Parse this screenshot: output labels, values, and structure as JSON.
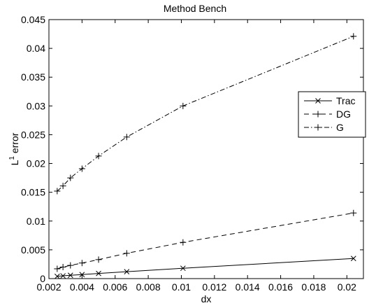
{
  "chart_data": {
    "type": "line",
    "title": "Method Bench",
    "xlabel": "dx",
    "ylabel_main": "L",
    "ylabel_sup": "1",
    "ylabel_rest": " error",
    "xlim": [
      0.002,
      0.021
    ],
    "ylim": [
      0,
      0.045
    ],
    "xticks": [
      0.002,
      0.004,
      0.006,
      0.008,
      0.01,
      0.012,
      0.014,
      0.016,
      0.018,
      0.02
    ],
    "xtick_labels": [
      "0.002",
      "0.004",
      "0.006",
      "0.008",
      "0.01",
      "0.012",
      "0.014",
      "0.016",
      "0.018",
      "0.02"
    ],
    "yticks": [
      0,
      0.005,
      0.01,
      0.015,
      0.02,
      0.025,
      0.03,
      0.035,
      0.04,
      0.045
    ],
    "ytick_labels": [
      "0",
      "0.005",
      "0.01",
      "0.015",
      "0.02",
      "0.025",
      "0.03",
      "0.035",
      "0.04",
      "0.045"
    ],
    "grid": false,
    "legend_position": "top-right",
    "x": [
      0.0025,
      0.00285,
      0.0033,
      0.004,
      0.005,
      0.0067,
      0.0101,
      0.0204
    ],
    "series": [
      {
        "name": "Trac",
        "line": "solid",
        "marker": "x",
        "values": [
          0.0004,
          0.00048,
          0.00058,
          0.0007,
          0.0009,
          0.0012,
          0.0018,
          0.0035
        ]
      },
      {
        "name": "DG",
        "line": "dashed",
        "marker": "+",
        "values": [
          0.0017,
          0.002,
          0.0023,
          0.0027,
          0.0033,
          0.0044,
          0.0063,
          0.0114
        ]
      },
      {
        "name": "G",
        "line": "dashdot",
        "marker": "+",
        "values": [
          0.0152,
          0.0161,
          0.0175,
          0.0191,
          0.0213,
          0.0246,
          0.03,
          0.0421
        ]
      }
    ]
  }
}
